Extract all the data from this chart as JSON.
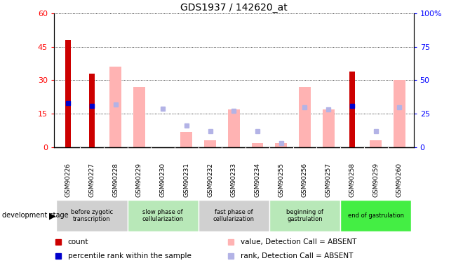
{
  "title": "GDS1937 / 142620_at",
  "samples": [
    "GSM90226",
    "GSM90227",
    "GSM90228",
    "GSM90229",
    "GSM90230",
    "GSM90231",
    "GSM90232",
    "GSM90233",
    "GSM90234",
    "GSM90255",
    "GSM90256",
    "GSM90257",
    "GSM90258",
    "GSM90259",
    "GSM90260"
  ],
  "count_values": [
    48,
    33,
    null,
    null,
    null,
    null,
    null,
    null,
    null,
    null,
    null,
    null,
    34,
    null,
    null
  ],
  "percentile_rank": [
    33,
    31,
    null,
    null,
    null,
    null,
    null,
    null,
    null,
    null,
    null,
    null,
    31,
    null,
    null
  ],
  "absent_value": [
    null,
    null,
    36,
    27,
    null,
    7,
    3,
    17,
    2,
    2,
    27,
    17,
    null,
    3,
    30
  ],
  "absent_rank": [
    null,
    null,
    32,
    null,
    29,
    16,
    12,
    27,
    12,
    3,
    30,
    28,
    null,
    12,
    30
  ],
  "ylim_left": [
    0,
    60
  ],
  "ylim_right": [
    0,
    100
  ],
  "yticks_left": [
    0,
    15,
    30,
    45,
    60
  ],
  "yticks_right": [
    0,
    25,
    50,
    75,
    100
  ],
  "stages": [
    {
      "label": "before zygotic\ntranscription",
      "samples": [
        "GSM90226",
        "GSM90227",
        "GSM90228"
      ],
      "color": "#d0d0d0"
    },
    {
      "label": "slow phase of\ncellularization",
      "samples": [
        "GSM90229",
        "GSM90230",
        "GSM90231"
      ],
      "color": "#b8e8b8"
    },
    {
      "label": "fast phase of\ncellularization",
      "samples": [
        "GSM90232",
        "GSM90233",
        "GSM90234"
      ],
      "color": "#d0d0d0"
    },
    {
      "label": "beginning of\ngastrulation",
      "samples": [
        "GSM90255",
        "GSM90256",
        "GSM90257"
      ],
      "color": "#b8e8b8"
    },
    {
      "label": "end of gastrulation",
      "samples": [
        "GSM90258",
        "GSM90259",
        "GSM90260"
      ],
      "color": "#44ee44"
    }
  ],
  "count_color": "#cc0000",
  "percentile_color": "#0000cc",
  "absent_value_color": "#ffb3b3",
  "absent_rank_color": "#b3b3e6",
  "background_color": "#ffffff",
  "legend_items": [
    {
      "label": "count",
      "color": "#cc0000"
    },
    {
      "label": "percentile rank within the sample",
      "color": "#0000cc"
    },
    {
      "label": "value, Detection Call = ABSENT",
      "color": "#ffb3b3"
    },
    {
      "label": "rank, Detection Call = ABSENT",
      "color": "#b3b3e6"
    }
  ]
}
